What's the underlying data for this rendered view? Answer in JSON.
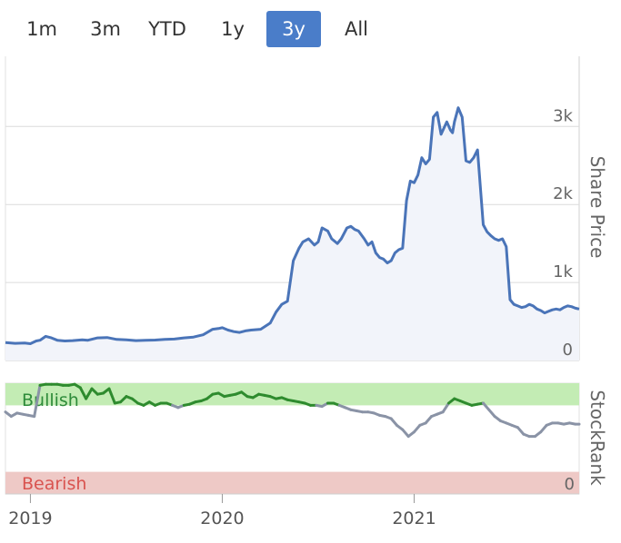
{
  "range_selector": {
    "buttons": [
      {
        "label": "1m"
      },
      {
        "label": "3m"
      },
      {
        "label": "YTD"
      },
      {
        "label": "1y"
      },
      {
        "label": "3y"
      },
      {
        "label": "All"
      }
    ],
    "selected": "3y"
  },
  "colors": {
    "price_line": "#4a74b8",
    "price_area": "#f2f4fa",
    "gridline": "#dcdcdc",
    "bullish_band": "#c3ecb4",
    "bearish_band": "#eec9c6",
    "bullish_text": "#2e8b3a",
    "bearish_text": "#d9534f",
    "rank_bullish_line": "#2e8b2e",
    "rank_neutral_line": "#8a93a6",
    "active_button": "#4a7dc9"
  },
  "chart_data": [
    {
      "type": "area",
      "ylabel": "Share Price",
      "ylim": [
        0,
        3900
      ],
      "y_ticks": [
        {
          "value": 0,
          "label": "0"
        },
        {
          "value": 1000,
          "label": "1k"
        },
        {
          "value": 2000,
          "label": "2k"
        },
        {
          "value": 3000,
          "label": "3k"
        }
      ],
      "x_ticks": [
        {
          "value": 2019.0,
          "label": "2019"
        },
        {
          "value": 2020.0,
          "label": "2020"
        },
        {
          "value": 2021.0,
          "label": "2021"
        }
      ],
      "xlim": [
        2018.87,
        2021.86
      ],
      "grid": true,
      "series": [
        {
          "x": [
            2018.87,
            2018.92,
            2018.97,
            2019.0,
            2019.03,
            2019.05,
            2019.08,
            2019.11,
            2019.14,
            2019.18,
            2019.22,
            2019.27,
            2019.3,
            2019.35,
            2019.4,
            2019.45,
            2019.5,
            2019.55,
            2019.6,
            2019.65,
            2019.7,
            2019.75,
            2019.8,
            2019.85,
            2019.9,
            2019.95,
            2019.98,
            2020.0,
            2020.03,
            2020.06,
            2020.09,
            2020.12,
            2020.15,
            2020.2,
            2020.25,
            2020.28,
            2020.31,
            2020.34,
            2020.37,
            2020.4,
            2020.42,
            2020.45,
            2020.48,
            2020.5,
            2020.52,
            2020.55,
            2020.57,
            2020.6,
            2020.62,
            2020.65,
            2020.67,
            2020.69,
            2020.71,
            2020.74,
            2020.76,
            2020.78,
            2020.8,
            2020.82,
            2020.84,
            2020.86,
            2020.88,
            2020.9,
            2020.92,
            2020.94,
            2020.96,
            2020.98,
            2021.0,
            2021.02,
            2021.04,
            2021.06,
            2021.08,
            2021.1,
            2021.12,
            2021.14,
            2021.17,
            2021.19,
            2021.2,
            2021.21,
            2021.23,
            2021.25,
            2021.27,
            2021.29,
            2021.31,
            2021.33,
            2021.36,
            2021.38,
            2021.4,
            2021.42,
            2021.44,
            2021.46,
            2021.48,
            2021.5,
            2021.52,
            2021.54,
            2021.56,
            2021.58,
            2021.6,
            2021.62,
            2021.64,
            2021.66,
            2021.68,
            2021.7,
            2021.72,
            2021.74,
            2021.76,
            2021.78,
            2021.8,
            2021.82,
            2021.84,
            2021.86
          ],
          "values": [
            230,
            220,
            225,
            215,
            250,
            260,
            310,
            290,
            260,
            250,
            255,
            265,
            260,
            290,
            295,
            270,
            265,
            255,
            258,
            262,
            270,
            275,
            290,
            300,
            330,
            400,
            410,
            420,
            390,
            370,
            360,
            380,
            390,
            400,
            480,
            620,
            720,
            760,
            1280,
            1440,
            1520,
            1560,
            1480,
            1520,
            1700,
            1660,
            1560,
            1500,
            1560,
            1700,
            1720,
            1680,
            1660,
            1560,
            1480,
            1520,
            1380,
            1320,
            1300,
            1250,
            1280,
            1380,
            1420,
            1440,
            2050,
            2300,
            2280,
            2380,
            2600,
            2520,
            2580,
            3120,
            3180,
            2900,
            3060,
            2950,
            2920,
            3060,
            3240,
            3120,
            2560,
            2540,
            2600,
            2700,
            1740,
            1650,
            1600,
            1560,
            1540,
            1560,
            1460,
            780,
            720,
            700,
            680,
            690,
            720,
            700,
            660,
            640,
            610,
            630,
            650,
            660,
            650,
            680,
            700,
            690,
            670,
            660
          ]
        }
      ]
    },
    {
      "type": "line",
      "ylabel": "StockRank",
      "ylim": [
        0,
        100
      ],
      "y_ticks": [
        {
          "value": 0,
          "label": "0"
        }
      ],
      "xlim": [
        2018.87,
        2021.86
      ],
      "bands": [
        {
          "label": "Bullish",
          "from": 80,
          "to": 100
        },
        {
          "label": "Bearish",
          "from": 0,
          "to": 20
        }
      ],
      "series": [
        {
          "x": [
            2018.87,
            2018.9,
            2018.93,
            2018.96,
            2018.99,
            2019.02,
            2019.05,
            2019.08,
            2019.11,
            2019.14,
            2019.17,
            2019.2,
            2019.23,
            2019.26,
            2019.29,
            2019.32,
            2019.35,
            2019.38,
            2019.41,
            2019.44,
            2019.47,
            2019.5,
            2019.53,
            2019.56,
            2019.59,
            2019.62,
            2019.65,
            2019.68,
            2019.71,
            2019.74,
            2019.77,
            2019.8,
            2019.83,
            2019.86,
            2019.89,
            2019.92,
            2019.95,
            2019.98,
            2020.01,
            2020.04,
            2020.07,
            2020.1,
            2020.13,
            2020.16,
            2020.19,
            2020.22,
            2020.25,
            2020.28,
            2020.31,
            2020.34,
            2020.37,
            2020.4,
            2020.43,
            2020.46,
            2020.49,
            2020.52,
            2020.55,
            2020.58,
            2020.61,
            2020.64,
            2020.67,
            2020.7,
            2020.73,
            2020.76,
            2020.79,
            2020.82,
            2020.85,
            2020.88,
            2020.91,
            2020.94,
            2020.97,
            2021.0,
            2021.03,
            2021.06,
            2021.09,
            2021.12,
            2021.15,
            2021.18,
            2021.21,
            2021.24,
            2021.27,
            2021.3,
            2021.33,
            2021.36,
            2021.39,
            2021.42,
            2021.45,
            2021.48,
            2021.51,
            2021.54,
            2021.57,
            2021.6,
            2021.63,
            2021.66,
            2021.69,
            2021.72,
            2021.75,
            2021.78,
            2021.81,
            2021.84,
            2021.86
          ],
          "values": [
            74,
            70,
            73,
            72,
            71,
            70,
            98,
            99,
            99,
            99,
            98,
            98,
            99,
            96,
            86,
            95,
            90,
            91,
            95,
            82,
            83,
            88,
            86,
            82,
            80,
            83,
            80,
            82,
            82,
            80,
            78,
            80,
            81,
            83,
            84,
            86,
            90,
            91,
            88,
            89,
            90,
            92,
            88,
            87,
            90,
            89,
            88,
            86,
            87,
            85,
            84,
            83,
            82,
            80,
            80,
            79,
            82,
            82,
            80,
            78,
            76,
            75,
            74,
            74,
            73,
            71,
            70,
            68,
            62,
            58,
            52,
            56,
            62,
            64,
            70,
            72,
            74,
            82,
            86,
            84,
            82,
            80,
            81,
            82,
            76,
            70,
            66,
            64,
            62,
            60,
            54,
            52,
            52,
            56,
            62,
            64,
            64,
            63,
            64,
            63,
            63
          ]
        }
      ],
      "series_colors": {
        "above_bullish": "#2e8b2e",
        "default": "#8a93a6"
      }
    }
  ]
}
